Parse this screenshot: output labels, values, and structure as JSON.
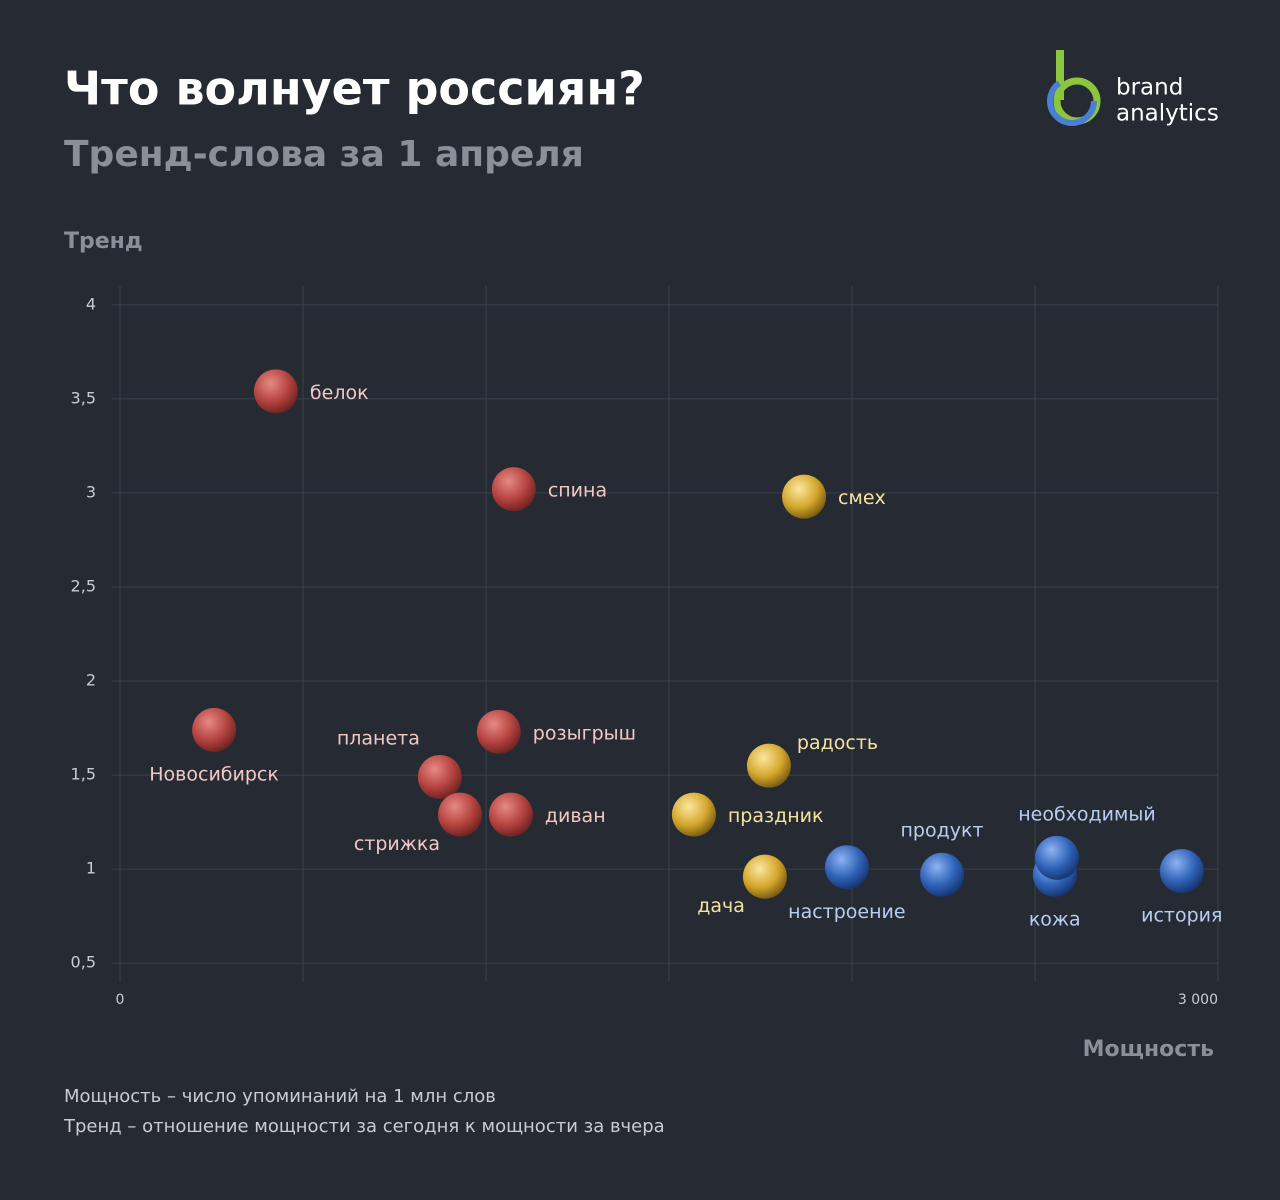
{
  "header": {
    "title": "Что волнует россиян?",
    "subtitle": "Тренд-слова за 1 апреля",
    "logo": [
      "brand",
      "analytics"
    ]
  },
  "chart_data": {
    "type": "scatter",
    "y_label": "Тренд",
    "x_label": "Мощность",
    "xlim": [
      0,
      3000
    ],
    "ylim": [
      0.4,
      4.1
    ],
    "xticks": [
      0,
      {
        "value": 500,
        "label": null
      },
      {
        "value": 1000,
        "label": null
      },
      {
        "value": 1500,
        "label": null
      },
      {
        "value": 2000,
        "label": null
      },
      {
        "value": 2500,
        "label": null
      },
      {
        "value": 3000,
        "label": "3 000"
      }
    ],
    "yticks": [
      {
        "value": 0.5,
        "label": "0,5"
      },
      1,
      {
        "value": 1.5,
        "label": "1,5"
      },
      2,
      {
        "value": 2.5,
        "label": "2,5"
      },
      3,
      {
        "value": 3.5,
        "label": "3,5"
      },
      4
    ],
    "grid": true,
    "series": [
      {
        "color": "#b5433f",
        "label_color": "#f2c7c4",
        "labels": [
          "белок",
          "спина",
          "Новосибирск",
          "розыгрыш",
          "планета",
          "стрижка",
          "диван"
        ],
        "x": [
          426,
          1076,
          257,
          1035,
          874,
          929,
          1068
        ],
        "values": [
          3.54,
          3.02,
          1.74,
          1.73,
          1.49,
          1.29,
          1.29
        ]
      },
      {
        "color": "#d4a72c",
        "label_color": "#f4e3a0",
        "labels": [
          "смех",
          "радость",
          "праздник",
          "дача"
        ],
        "x": [
          1869,
          1773,
          1568,
          1762
        ],
        "values": [
          2.98,
          1.55,
          1.29,
          0.96
        ]
      },
      {
        "color": "#2f62b8",
        "label_color": "#b9cdf2",
        "labels": [
          "настроение",
          "продукт",
          "кожа",
          "необходимый",
          "история"
        ],
        "x": [
          1986,
          2246,
          2554,
          2560,
          2901
        ],
        "values": [
          1.01,
          0.97,
          0.97,
          1.06,
          0.99
        ]
      }
    ]
  },
  "footnotes": [
    "Мощность – число упоминаний на 1 млн слов",
    "Тренд – отношение мощности за сегодня к мощности за вчера"
  ]
}
